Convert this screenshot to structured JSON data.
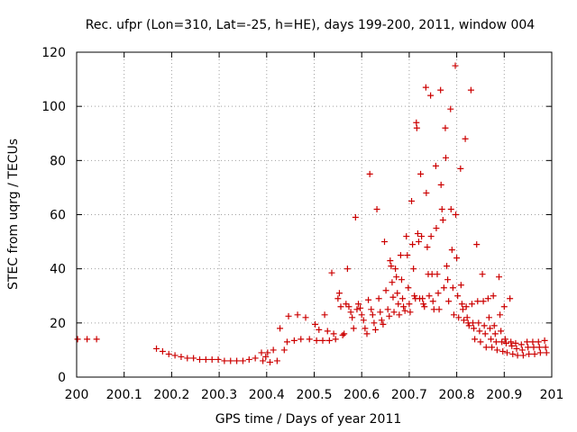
{
  "chart_data": {
    "type": "scatter",
    "title": "Rec. ufpr (Lon=310, Lat=-25, h=HE), days 199-200, 2011, window 004",
    "xlabel": "GPS time / Days of year 2011",
    "ylabel": "STEC from uqrg / TECUs",
    "xlim": [
      200,
      201
    ],
    "ylim": [
      0,
      120
    ],
    "xticks": [
      200,
      200.1,
      200.2,
      200.3,
      200.4,
      200.5,
      200.6,
      200.7,
      200.8,
      200.9,
      201
    ],
    "xtick_labels": [
      "200",
      "200.1",
      "200.2",
      "200.3",
      "200.4",
      "200.5",
      "200.6",
      "200.7",
      "200.8",
      "200.9",
      "201"
    ],
    "yticks": [
      0,
      20,
      40,
      60,
      80,
      100,
      120
    ],
    "ytick_labels": [
      "0",
      "20",
      "40",
      "60",
      "80",
      "100",
      "120"
    ],
    "grid": true,
    "marker": "+",
    "color": "#cc0000",
    "series": [
      {
        "name": "STEC",
        "points": [
          [
            200.002,
            14
          ],
          [
            200.022,
            14
          ],
          [
            200.042,
            14
          ],
          [
            200.168,
            10.5
          ],
          [
            200.181,
            9.5
          ],
          [
            200.194,
            8.5
          ],
          [
            200.207,
            8
          ],
          [
            200.22,
            7.5
          ],
          [
            200.233,
            7
          ],
          [
            200.246,
            7
          ],
          [
            200.259,
            6.5
          ],
          [
            200.272,
            6.5
          ],
          [
            200.285,
            6.5
          ],
          [
            200.298,
            6.5
          ],
          [
            200.311,
            6
          ],
          [
            200.324,
            6
          ],
          [
            200.337,
            6
          ],
          [
            200.35,
            6
          ],
          [
            200.363,
            6.5
          ],
          [
            200.376,
            7
          ],
          [
            200.389,
            9
          ],
          [
            200.392,
            6
          ],
          [
            200.398,
            7.5
          ],
          [
            200.402,
            9
          ],
          [
            200.407,
            5.5
          ],
          [
            200.414,
            10
          ],
          [
            200.422,
            6
          ],
          [
            200.428,
            18
          ],
          [
            200.437,
            10
          ],
          [
            200.443,
            13
          ],
          [
            200.446,
            22.5
          ],
          [
            200.458,
            13.5
          ],
          [
            200.465,
            23
          ],
          [
            200.472,
            14
          ],
          [
            200.482,
            22
          ],
          [
            200.49,
            14
          ],
          [
            200.502,
            19.5
          ],
          [
            200.505,
            13.5
          ],
          [
            200.51,
            17.5
          ],
          [
            200.518,
            13.5
          ],
          [
            200.522,
            23
          ],
          [
            200.528,
            17
          ],
          [
            200.532,
            13.5
          ],
          [
            200.537,
            38.5
          ],
          [
            200.541,
            16
          ],
          [
            200.545,
            14
          ],
          [
            200.55,
            29
          ],
          [
            200.553,
            31
          ],
          [
            200.556,
            26
          ],
          [
            200.56,
            15.5
          ],
          [
            200.563,
            16
          ],
          [
            200.567,
            27
          ],
          [
            200.57,
            40
          ],
          [
            200.573,
            26
          ],
          [
            200.577,
            24
          ],
          [
            200.58,
            22
          ],
          [
            200.583,
            18
          ],
          [
            200.587,
            59
          ],
          [
            200.59,
            25
          ],
          [
            200.593,
            27
          ],
          [
            200.597,
            25.5
          ],
          [
            200.6,
            23
          ],
          [
            200.604,
            21
          ],
          [
            200.607,
            18
          ],
          [
            200.611,
            16
          ],
          [
            200.614,
            28.5
          ],
          [
            200.617,
            75
          ],
          [
            200.62,
            25
          ],
          [
            200.623,
            23
          ],
          [
            200.626,
            20
          ],
          [
            200.629,
            17.5
          ],
          [
            200.632,
            62
          ],
          [
            200.636,
            29
          ],
          [
            200.639,
            24
          ],
          [
            200.642,
            21
          ],
          [
            200.645,
            19.5
          ],
          [
            200.648,
            50
          ],
          [
            200.651,
            32
          ],
          [
            200.655,
            25
          ],
          [
            200.658,
            22.5
          ],
          [
            200.66,
            43
          ],
          [
            200.662,
            41
          ],
          [
            200.664,
            35
          ],
          [
            200.666,
            29.5
          ],
          [
            200.668,
            24
          ],
          [
            200.671,
            40
          ],
          [
            200.673,
            37
          ],
          [
            200.675,
            31
          ],
          [
            200.677,
            27
          ],
          [
            200.679,
            23
          ],
          [
            200.682,
            45
          ],
          [
            200.684,
            36
          ],
          [
            200.686,
            29
          ],
          [
            200.688,
            26
          ],
          [
            200.691,
            24.5
          ],
          [
            200.694,
            52
          ],
          [
            200.696,
            45
          ],
          [
            200.698,
            33
          ],
          [
            200.7,
            27
          ],
          [
            200.702,
            24
          ],
          [
            200.705,
            65
          ],
          [
            200.707,
            49
          ],
          [
            200.709,
            40
          ],
          [
            200.711,
            30
          ],
          [
            200.713,
            29
          ],
          [
            200.715,
            94
          ],
          [
            200.716,
            92
          ],
          [
            200.718,
            53
          ],
          [
            200.72,
            50
          ],
          [
            200.722,
            29
          ],
          [
            200.724,
            75
          ],
          [
            200.726,
            52
          ],
          [
            200.728,
            29
          ],
          [
            200.73,
            27
          ],
          [
            200.732,
            26
          ],
          [
            200.735,
            107
          ],
          [
            200.736,
            68
          ],
          [
            200.738,
            48
          ],
          [
            200.74,
            38
          ],
          [
            200.742,
            30
          ],
          [
            200.745,
            104
          ],
          [
            200.746,
            52
          ],
          [
            200.748,
            38
          ],
          [
            200.75,
            28
          ],
          [
            200.752,
            25
          ],
          [
            200.756,
            78
          ],
          [
            200.757,
            55
          ],
          [
            200.759,
            38
          ],
          [
            200.761,
            31
          ],
          [
            200.763,
            25
          ],
          [
            200.766,
            106
          ],
          [
            200.767,
            71
          ],
          [
            200.769,
            62
          ],
          [
            200.771,
            58
          ],
          [
            200.773,
            33
          ],
          [
            200.776,
            92
          ],
          [
            200.777,
            81
          ],
          [
            200.779,
            41
          ],
          [
            200.781,
            36
          ],
          [
            200.783,
            28
          ],
          [
            200.787,
            99
          ],
          [
            200.788,
            62
          ],
          [
            200.79,
            47
          ],
          [
            200.792,
            33
          ],
          [
            200.794,
            23
          ],
          [
            200.797,
            115
          ],
          [
            200.798,
            60
          ],
          [
            200.8,
            44
          ],
          [
            200.802,
            30
          ],
          [
            200.804,
            22
          ],
          [
            200.808,
            77
          ],
          [
            200.809,
            34
          ],
          [
            200.811,
            27
          ],
          [
            200.813,
            25
          ],
          [
            200.815,
            21
          ],
          [
            200.818,
            88
          ],
          [
            200.82,
            26
          ],
          [
            200.822,
            22
          ],
          [
            200.824,
            20
          ],
          [
            200.826,
            19
          ],
          [
            200.83,
            106
          ],
          [
            200.832,
            27
          ],
          [
            200.834,
            20
          ],
          [
            200.836,
            18
          ],
          [
            200.838,
            14
          ],
          [
            200.842,
            49
          ],
          [
            200.844,
            28
          ],
          [
            200.846,
            20
          ],
          [
            200.848,
            17
          ],
          [
            200.85,
            13
          ],
          [
            200.854,
            38
          ],
          [
            200.856,
            28
          ],
          [
            200.858,
            19
          ],
          [
            200.86,
            16
          ],
          [
            200.862,
            11
          ],
          [
            200.866,
            29
          ],
          [
            200.868,
            22
          ],
          [
            200.87,
            18
          ],
          [
            200.872,
            14
          ],
          [
            200.874,
            11
          ],
          [
            200.877,
            30
          ],
          [
            200.879,
            19
          ],
          [
            200.881,
            16
          ],
          [
            200.883,
            13
          ],
          [
            200.885,
            10
          ],
          [
            200.889,
            37
          ],
          [
            200.891,
            23
          ],
          [
            200.893,
            17
          ],
          [
            200.895,
            13
          ],
          [
            200.897,
            9.5
          ],
          [
            200.9,
            26
          ],
          [
            200.902,
            14
          ],
          [
            200.904,
            12.5
          ],
          [
            200.906,
            9
          ],
          [
            200.912,
            29
          ],
          [
            200.914,
            13
          ],
          [
            200.916,
            11.5
          ],
          [
            200.918,
            8.5
          ],
          [
            200.924,
            12.5
          ],
          [
            200.926,
            10.5
          ],
          [
            200.928,
            8
          ],
          [
            200.936,
            12
          ],
          [
            200.938,
            10
          ],
          [
            200.94,
            8
          ],
          [
            200.948,
            13
          ],
          [
            200.95,
            11
          ],
          [
            200.952,
            8.5
          ],
          [
            200.96,
            13
          ],
          [
            200.962,
            11
          ],
          [
            200.964,
            8.5
          ],
          [
            200.972,
            13
          ],
          [
            200.974,
            11
          ],
          [
            200.976,
            9
          ],
          [
            200.985,
            13.5
          ],
          [
            200.987,
            11
          ],
          [
            200.989,
            9
          ]
        ]
      }
    ]
  }
}
